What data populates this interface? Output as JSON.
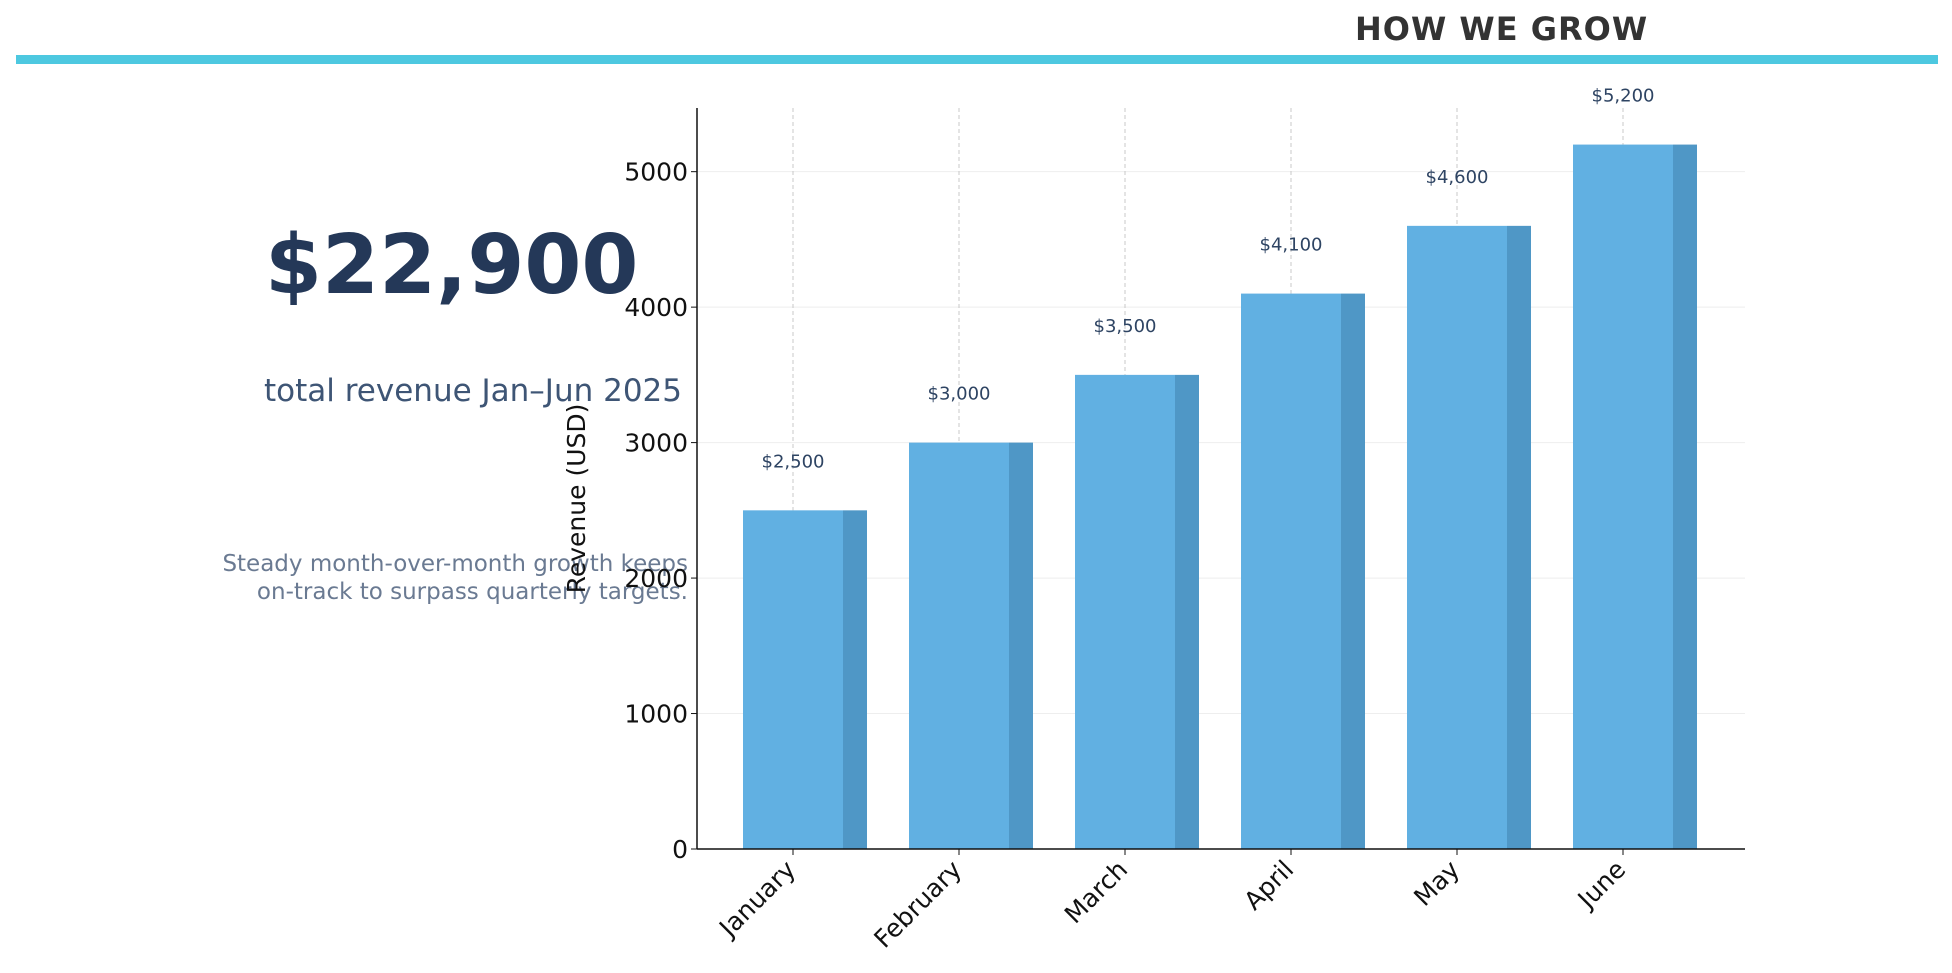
{
  "header": {
    "title": "HOW WE GROW",
    "accent_color": "#4dc8e0"
  },
  "kpi": {
    "value": "$22,900",
    "label": "total revenue Jan–Jun 2025",
    "note_lines": [
      "Steady month-over-month growth keeps",
      "on-track to surpass quarterly targets."
    ]
  },
  "chart_data": {
    "type": "bar",
    "categories": [
      "January",
      "February",
      "March",
      "April",
      "May",
      "June"
    ],
    "values": [
      2500,
      3000,
      3500,
      4100,
      4600,
      5200
    ],
    "data_labels": [
      "$2,500",
      "$3,000",
      "$3,500",
      "$4,100",
      "$4,600",
      "$5,200"
    ],
    "ylabel": "Revenue (USD)",
    "xlabel": "",
    "ylim": [
      0,
      5470
    ],
    "yticks": [
      0,
      1000,
      2000,
      3000,
      4000,
      5000
    ],
    "grid": true,
    "bar_color": "#61b0e2",
    "bar_shadow_color": "#4f97c6"
  }
}
